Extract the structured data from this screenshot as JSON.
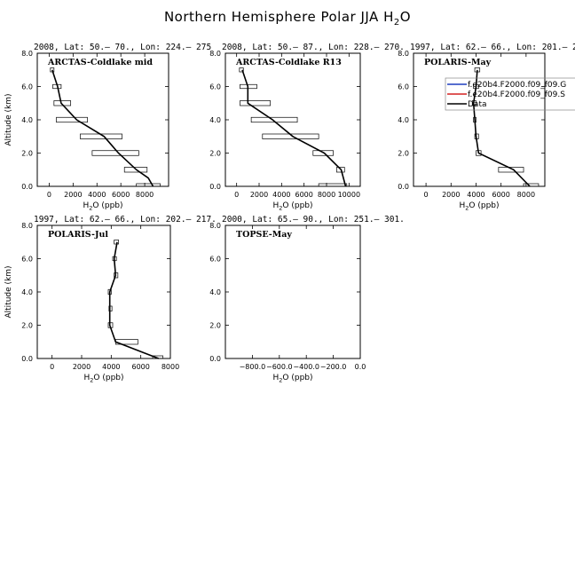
{
  "title": {
    "main": "Northern Hemisphere Polar JJA H",
    "sub": "2",
    "tail": "O"
  },
  "ylabel": "Altitude (km)",
  "xlabel": {
    "pre": "H",
    "sub": "2",
    "post": "O (ppb)"
  },
  "chart_data": [
    {
      "type": "line",
      "header": "2008, Lat:  50.– 70., Lon: 224.– 275",
      "campaign": "ARCTAS-Coldlake mid",
      "xlim": [
        -1000,
        10000
      ],
      "ylim": [
        0,
        8
      ],
      "xticks": [
        "0",
        "2000",
        "4000",
        "6000",
        "8000"
      ],
      "yticks": [
        "0.0",
        "2.0",
        "4.0",
        "6.0",
        "8.0"
      ],
      "series": [
        {
          "x": [
            8700,
            8300,
            7300,
            5800,
            4600,
            2300,
            1000,
            700,
            250
          ],
          "y": [
            0,
            0.5,
            1,
            2,
            3,
            4,
            5,
            6,
            7
          ]
        }
      ],
      "boxes": [
        {
          "y": 0,
          "lo": 7300,
          "hi": 9300
        },
        {
          "y": 1,
          "lo": 6300,
          "hi": 8200
        },
        {
          "y": 2,
          "lo": 3600,
          "hi": 7500
        },
        {
          "y": 3,
          "lo": 2600,
          "hi": 6100
        },
        {
          "y": 4,
          "lo": 600,
          "hi": 3200
        },
        {
          "y": 5,
          "lo": 400,
          "hi": 1800
        },
        {
          "y": 6,
          "lo": 300,
          "hi": 1000
        },
        {
          "y": 7,
          "lo": 100,
          "hi": 400
        }
      ]
    },
    {
      "type": "line",
      "header": "2008, Lat:  50.– 87., Lon: 228.– 270.",
      "campaign": "ARCTAS-Coldlake R13",
      "xlim": [
        -1000,
        11000
      ],
      "ylim": [
        0,
        8
      ],
      "xticks": [
        "0",
        "2000",
        "4000",
        "6000",
        "8000",
        "10000"
      ],
      "yticks": [
        "0.0",
        "2.0",
        "4.0",
        "6.0",
        "8.0"
      ],
      "series": [
        {
          "x": [
            9700,
            9300,
            7800,
            5000,
            3200,
            1000,
            1000,
            500
          ],
          "y": [
            0,
            1,
            2,
            3,
            4,
            5,
            6,
            7
          ]
        }
      ],
      "boxes": [
        {
          "y": 0,
          "lo": 7300,
          "hi": 9800
        },
        {
          "y": 1,
          "lo": 8900,
          "hi": 9600
        },
        {
          "y": 2,
          "lo": 6800,
          "hi": 8600
        },
        {
          "y": 3,
          "lo": 2300,
          "hi": 7300
        },
        {
          "y": 4,
          "lo": 1300,
          "hi": 5400
        },
        {
          "y": 5,
          "lo": 300,
          "hi": 3000
        },
        {
          "y": 6,
          "lo": 300,
          "hi": 1800
        },
        {
          "y": 7,
          "lo": 250,
          "hi": 600
        }
      ]
    },
    {
      "type": "line",
      "header": "1997, Lat: 62.– 66., Lon: 201.– 216.",
      "campaign": "POLARIS-May",
      "xlim": [
        -1000,
        9500
      ],
      "ylim": [
        0,
        8
      ],
      "xticks": [
        "0",
        "2000",
        "4000",
        "6000",
        "8000"
      ],
      "yticks": [
        "0.0",
        "2.0",
        "4.0",
        "6.0",
        "8.0"
      ],
      "legend": [
        "f.e20b4.F2000.f09_f09.G",
        "f.e20b4.F2000.f09_f09.S",
        "Data"
      ],
      "legend_colors": [
        "#1f3fbf",
        "#d42020",
        "#000000"
      ],
      "legend_position": "top-right",
      "series": [
        {
          "x": [
            8300,
            7000,
            4200,
            4000,
            3900,
            3800,
            4000,
            4100
          ],
          "y": [
            0,
            1,
            2,
            3,
            4,
            5,
            6,
            7
          ]
        }
      ],
      "boxes": [
        {
          "y": 0,
          "lo": 7800,
          "hi": 9000
        },
        {
          "y": 1,
          "lo": 5800,
          "hi": 7800
        },
        {
          "y": 2,
          "lo": 4000,
          "hi": 4400
        },
        {
          "y": 3,
          "lo": 3900,
          "hi": 4200
        },
        {
          "y": 4,
          "lo": 3800,
          "hi": 4000
        },
        {
          "y": 5,
          "lo": 3700,
          "hi": 4000
        },
        {
          "y": 6,
          "lo": 3800,
          "hi": 4200
        },
        {
          "y": 7,
          "lo": 3900,
          "hi": 4300
        }
      ]
    },
    {
      "type": "line",
      "header": "1997, Lat: 62.– 66., Lon: 202.– 217.",
      "campaign": "POLARIS-Jul",
      "xlim": [
        -1000,
        8000
      ],
      "ylim": [
        0,
        8
      ],
      "xticks": [
        "0",
        "2000",
        "4000",
        "6000",
        "8000"
      ],
      "yticks": [
        "0.0",
        "2.0",
        "4.0",
        "6.0",
        "8.0"
      ],
      "series": [
        {
          "x": [
            7200,
            4300,
            3900,
            3900,
            3900,
            4300,
            4200,
            4400
          ],
          "y": [
            0,
            1,
            2,
            3,
            4,
            5,
            6,
            7
          ]
        }
      ],
      "boxes": [
        {
          "y": 0,
          "lo": 6800,
          "hi": 7500
        },
        {
          "y": 1,
          "lo": 4300,
          "hi": 5800
        },
        {
          "y": 2,
          "lo": 3800,
          "hi": 4100
        },
        {
          "y": 3,
          "lo": 3850,
          "hi": 4050
        },
        {
          "y": 4,
          "lo": 3800,
          "hi": 4000
        },
        {
          "y": 5,
          "lo": 4200,
          "hi": 4450
        },
        {
          "y": 6,
          "lo": 4100,
          "hi": 4350
        },
        {
          "y": 7,
          "lo": 4200,
          "hi": 4500
        }
      ]
    },
    {
      "type": "line",
      "header": "2000, Lat: 65.– 90., Lon: 251.– 301.",
      "campaign": "TOPSE-May",
      "xlim": [
        -1000,
        0
      ],
      "ylim": [
        0,
        8
      ],
      "xticks": [
        "−800.0",
        "−600.0",
        "−400.0",
        "−200.0",
        "0.0"
      ],
      "xtick_values": [
        -800,
        -600,
        -400,
        -200,
        0
      ],
      "yticks": [
        "0.0",
        "2.0",
        "4.0",
        "6.0",
        "8.0"
      ],
      "series": [],
      "boxes": []
    }
  ]
}
